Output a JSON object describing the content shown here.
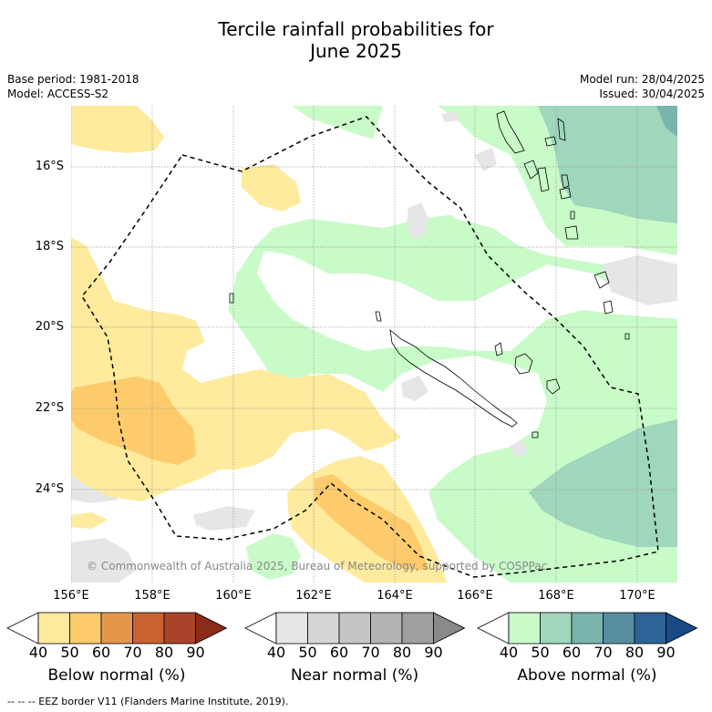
{
  "title_line1": "Tercile rainfall probabilities for",
  "title_line2": "June 2025",
  "meta_left": {
    "base_period": "Base period: 1981-2018",
    "model": "Model: ACCESS-S2"
  },
  "meta_right": {
    "model_run": "Model run: 28/04/2025",
    "issued": "Issued: 30/04/2025"
  },
  "lat_labels": [
    "16°S",
    "18°S",
    "20°S",
    "22°S",
    "24°S"
  ],
  "lon_labels": [
    "156°E",
    "158°E",
    "160°E",
    "162°E",
    "164°E",
    "166°E",
    "168°E",
    "170°E"
  ],
  "copyright": "© Commonwealth of Australia 2025, Bureau of Meteorology, supported by COSPPac",
  "colorbars": [
    {
      "label": "Below normal (%)",
      "ticks": [
        "40",
        "50",
        "60",
        "70",
        "80",
        "90"
      ],
      "colors": [
        "#ffffff",
        "#feeb9d",
        "#fdcb6b",
        "#e4974a",
        "#c9622f",
        "#a9442a",
        "#8b2b1a"
      ]
    },
    {
      "label": "Near normal (%)",
      "ticks": [
        "40",
        "50",
        "60",
        "70",
        "80",
        "90"
      ],
      "colors": [
        "#ffffff",
        "#e6e6e6",
        "#d6d6d6",
        "#c5c5c5",
        "#b3b3b3",
        "#9f9f9f",
        "#8a8a8a"
      ]
    },
    {
      "label": "Above normal (%)",
      "ticks": [
        "40",
        "50",
        "60",
        "70",
        "80",
        "90"
      ],
      "colors": [
        "#ffffff",
        "#c9fbc9",
        "#9fd6bc",
        "#79b4ad",
        "#568e9f",
        "#2e6397",
        "#174a86"
      ]
    }
  ],
  "footer": "--  --  -- EEZ border V11 (Flanders Marine Institute, 2019).",
  "colors": {
    "map_background": "#ffffff",
    "grid": "#999999",
    "coast": "#000000"
  }
}
